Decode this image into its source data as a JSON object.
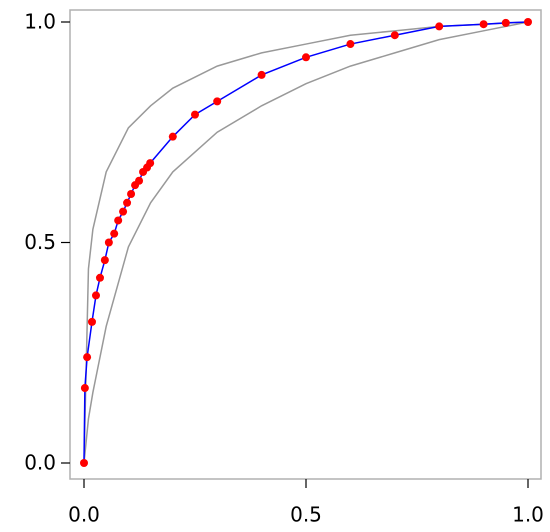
{
  "chart_data": {
    "type": "line",
    "xlim": [
      0,
      1
    ],
    "ylim": [
      0,
      1
    ],
    "xticks": [
      {
        "value": 0,
        "label": "0.0"
      },
      {
        "value": 0.5,
        "label": "0.5"
      },
      {
        "value": 1,
        "label": "1.0"
      }
    ],
    "yticks": [
      {
        "value": 0,
        "label": "0.0"
      },
      {
        "value": 0.5,
        "label": "0.5"
      },
      {
        "value": 1,
        "label": "1.0"
      }
    ],
    "series": [
      {
        "color": "#999999",
        "markers": false,
        "x": [
          0,
          0.01,
          0.02,
          0.05,
          0.1,
          0.15,
          0.2,
          0.3,
          0.4,
          0.5,
          0.6,
          0.7,
          0.8,
          0.9,
          1
        ],
        "values": [
          0,
          0.44,
          0.53,
          0.66,
          0.76,
          0.81,
          0.85,
          0.9,
          0.93,
          0.95,
          0.97,
          0.98,
          0.99,
          0.995,
          1
        ]
      },
      {
        "color": "#999999",
        "markers": false,
        "x": [
          0,
          0.01,
          0.02,
          0.05,
          0.1,
          0.15,
          0.2,
          0.3,
          0.4,
          0.5,
          0.6,
          0.7,
          0.8,
          0.9,
          1
        ],
        "values": [
          0,
          0.1,
          0.16,
          0.31,
          0.49,
          0.59,
          0.66,
          0.75,
          0.81,
          0.86,
          0.9,
          0.93,
          0.96,
          0.98,
          1
        ]
      },
      {
        "color": "#0000ff",
        "markers": true,
        "marker_color": "#ff0000",
        "x": [
          0,
          0.002,
          0.007,
          0.018,
          0.027,
          0.036,
          0.047,
          0.056,
          0.068,
          0.077,
          0.088,
          0.097,
          0.106,
          0.115,
          0.124,
          0.133,
          0.142,
          0.149,
          0.2,
          0.25,
          0.3,
          0.4,
          0.5,
          0.6,
          0.7,
          0.8,
          0.9,
          0.95,
          1
        ],
        "values": [
          0,
          0.17,
          0.24,
          0.32,
          0.38,
          0.42,
          0.46,
          0.5,
          0.52,
          0.55,
          0.57,
          0.59,
          0.61,
          0.63,
          0.64,
          0.66,
          0.67,
          0.68,
          0.74,
          0.79,
          0.82,
          0.88,
          0.92,
          0.95,
          0.97,
          0.99,
          0.995,
          0.998,
          1
        ]
      }
    ]
  }
}
